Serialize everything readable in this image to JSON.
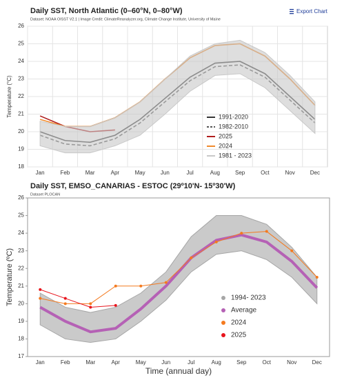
{
  "toolbar": {
    "export": "Export Chart"
  },
  "chart_data": [
    {
      "type": "line",
      "title": "Daily SST, North Atlantic (0–60°N, 0–80°W)",
      "subtitle": "Dataset: NOAA OISST V2.1 | Image Credit: ClimateReanalyzer.org, Climate Change Institute, University of Maine",
      "ylabel": "Temperature (°C)",
      "categories": [
        "Jan",
        "Feb",
        "Mar",
        "Apr",
        "May",
        "Jun",
        "Jul",
        "Aug",
        "Sep",
        "Oct",
        "Nov",
        "Dec"
      ],
      "ylim": [
        18,
        26
      ],
      "yticks": [
        18,
        19,
        20,
        21,
        22,
        23,
        24,
        25,
        26
      ],
      "grid": true,
      "legend": "lower-right",
      "series": [
        {
          "name": "1991-2020",
          "color": "#333333",
          "style": "solid",
          "values": [
            20.0,
            19.5,
            19.4,
            19.8,
            20.7,
            21.9,
            23.1,
            23.9,
            24.0,
            23.3,
            22.0,
            20.7
          ]
        },
        {
          "name": "1982-2010",
          "color": "#555555",
          "style": "dashed",
          "values": [
            19.8,
            19.3,
            19.2,
            19.6,
            20.5,
            21.7,
            22.9,
            23.7,
            23.8,
            23.1,
            21.8,
            20.5
          ]
        },
        {
          "name": "2025",
          "color": "#b01c1c",
          "style": "solid",
          "values": [
            20.9,
            20.3,
            20.0,
            20.1,
            null,
            null,
            null,
            null,
            null,
            null,
            null,
            null
          ]
        },
        {
          "name": "2024",
          "color": "#f08a2c",
          "style": "solid",
          "values": [
            20.7,
            20.3,
            20.3,
            20.8,
            21.7,
            23.0,
            24.2,
            24.9,
            25.0,
            24.3,
            23.0,
            21.5
          ]
        },
        {
          "name": "1981 - 2023",
          "color": "#c8c8c8",
          "style": "band",
          "low": [
            19.2,
            18.8,
            18.8,
            19.2,
            19.8,
            21.0,
            22.3,
            23.2,
            23.3,
            22.5,
            21.2,
            19.9
          ],
          "high": [
            20.6,
            20.3,
            20.3,
            20.8,
            21.7,
            23.0,
            24.3,
            25.0,
            25.2,
            24.5,
            23.2,
            21.7
          ]
        }
      ]
    },
    {
      "type": "line",
      "title": "Daily SST, EMSO_CANARIAS - ESTOC (29º10'N- 15º30'W)",
      "subtitle": "Dataset PLOCAN",
      "ylabel": "Temperature (ºC)",
      "xlabel": "Time (annual day)",
      "categories": [
        "Jan",
        "Feb",
        "Mar",
        "Apr",
        "May",
        "Jun",
        "Jul",
        "Aug",
        "Sep",
        "Oct",
        "Nov",
        "Dec"
      ],
      "ylim": [
        17,
        26
      ],
      "yticks": [
        17,
        18,
        19,
        20,
        21,
        22,
        23,
        24,
        25,
        26
      ],
      "grid": false,
      "legend": "lower-right",
      "series": [
        {
          "name": "1994- 2023",
          "color": "#a6a6a6",
          "style": "band",
          "low": [
            18.8,
            18.0,
            17.8,
            18.0,
            19.0,
            20.2,
            21.8,
            22.8,
            23.0,
            22.5,
            21.5,
            20.0
          ],
          "high": [
            20.6,
            19.8,
            19.5,
            19.8,
            20.6,
            21.8,
            23.8,
            25.0,
            25.0,
            24.5,
            23.2,
            21.5
          ]
        },
        {
          "name": "Average",
          "color": "#b561b5",
          "style": "thick",
          "values": [
            19.8,
            19.0,
            18.4,
            18.6,
            19.7,
            21.0,
            22.6,
            23.6,
            23.9,
            23.5,
            22.4,
            20.9
          ]
        },
        {
          "name": "2024",
          "color": "#f47a1f",
          "style": "dots",
          "values": [
            20.3,
            20.0,
            20.0,
            21.0,
            21.0,
            21.2,
            22.6,
            23.5,
            24.0,
            24.1,
            23.0,
            21.5
          ]
        },
        {
          "name": "2025",
          "color": "#e8141c",
          "style": "dots",
          "values": [
            20.8,
            20.3,
            19.8,
            19.9,
            null,
            null,
            null,
            null,
            null,
            null,
            null,
            null
          ]
        }
      ]
    }
  ]
}
